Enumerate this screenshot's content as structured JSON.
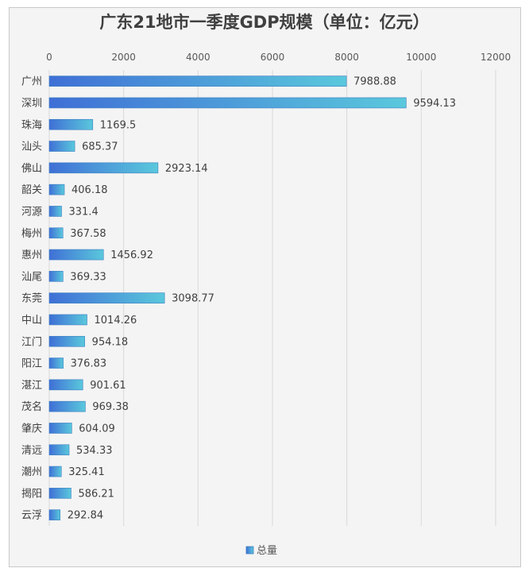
{
  "chart_data": {
    "type": "bar",
    "orientation": "horizontal",
    "title": "广东21地市一季度GDP规模（单位：亿元）",
    "categories": [
      "广州",
      "深圳",
      "珠海",
      "汕头",
      "佛山",
      "韶关",
      "河源",
      "梅州",
      "惠州",
      "汕尾",
      "东莞",
      "中山",
      "江门",
      "阳江",
      "湛江",
      "茂名",
      "肇庆",
      "清远",
      "潮州",
      "揭阳",
      "云浮"
    ],
    "series": [
      {
        "name": "总量",
        "values": [
          7988.88,
          9594.13,
          1169.5,
          685.37,
          2923.14,
          406.18,
          331.4,
          367.58,
          1456.92,
          369.33,
          3098.77,
          1014.26,
          954.18,
          376.83,
          901.61,
          969.38,
          604.09,
          534.33,
          325.41,
          586.21,
          292.84
        ],
        "value_labels": [
          "7988.88",
          "9594.13",
          "1169.5",
          "685.37",
          "2923.14",
          "406.18",
          "331.4",
          "367.58",
          "1456.92",
          "369.33",
          "3098.77",
          "1014.26",
          "954.18",
          "376.83",
          "901.61",
          "969.38",
          "604.09",
          "534.33",
          "325.41",
          "586.21",
          "292.84"
        ]
      }
    ],
    "xlim": [
      0,
      12000
    ],
    "xticks": [
      "0",
      "2000",
      "4000",
      "6000",
      "8000",
      "10000",
      "12000"
    ],
    "grid": true,
    "axis_position": "top",
    "legend": "bottom",
    "colors": {
      "bar_start": "#3f6fd6",
      "bar_end": "#5ac8dc",
      "grid": "#d9d9d9"
    }
  }
}
